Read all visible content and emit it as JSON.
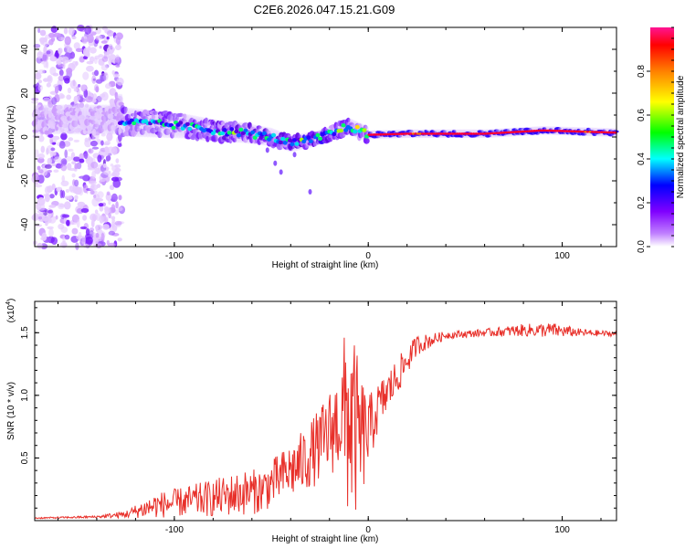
{
  "title": "C2E6.2026.047.15.21.G09",
  "colors": {
    "snr_line": "#e8302a",
    "axis": "#000000",
    "background": "#ffffff"
  },
  "chart_data": [
    {
      "type": "heatmap",
      "name": "spectrogram",
      "xlabel": "Height of straight line (km)",
      "ylabel": "Frequency (Hz)",
      "xlim": [
        -172,
        128
      ],
      "ylim": [
        -50,
        50
      ],
      "xticks": [
        -100,
        0,
        100
      ],
      "yticks": [
        -40,
        -20,
        0,
        20,
        40
      ],
      "colorbar": {
        "label": "Normalized spectral amplitude",
        "range": [
          0,
          1
        ],
        "ticks": [
          "0.0",
          "0.2",
          "0.4",
          "0.6",
          "0.8"
        ],
        "tick_values": [
          0.0,
          0.2,
          0.4,
          0.6,
          0.8
        ],
        "colormap": [
          "#ffffff",
          "#8000ff",
          "#0000ff",
          "#00ffff",
          "#00ff00",
          "#ffff00",
          "#ff8000",
          "#ff0000",
          "#ff1493"
        ]
      },
      "description_points": {
        "noise_region_x": [
          -172,
          -127
        ],
        "signal_track": [
          {
            "x": -130,
            "f": 7
          },
          {
            "x": -110,
            "f": 6
          },
          {
            "x": -95,
            "f": 5
          },
          {
            "x": -80,
            "f": 3
          },
          {
            "x": -65,
            "f": 2
          },
          {
            "x": -50,
            "f": 0
          },
          {
            "x": -40,
            "f": -3
          },
          {
            "x": -28,
            "f": -1
          },
          {
            "x": -15,
            "f": 3
          },
          {
            "x": -10,
            "f": 5
          },
          {
            "x": 0,
            "f": 1
          },
          {
            "x": 20,
            "f": 1.5
          },
          {
            "x": 60,
            "f": 1.5
          },
          {
            "x": 90,
            "f": 3
          },
          {
            "x": 128,
            "f": 2
          }
        ]
      }
    },
    {
      "type": "line",
      "name": "snr",
      "xlabel": "Height of straight line (km)",
      "ylabel": "SNR (10 * v/v)",
      "exponent_label": "(x10",
      "exponent_power": "4",
      "exponent_close": ")",
      "xlim": [
        -172,
        128
      ],
      "ylim": [
        0,
        1.75
      ],
      "xticks": [
        -100,
        0,
        100
      ],
      "yticks": [
        0.5,
        1.0,
        1.5
      ],
      "ytick_labels": [
        "0.5",
        "1.0",
        "1.5"
      ],
      "envelope": {
        "x": [
          -172,
          -140,
          -125,
          -110,
          -95,
          -80,
          -65,
          -55,
          -45,
          -35,
          -25,
          -15,
          -10,
          -5,
          0,
          5,
          15,
          25,
          40,
          60,
          80,
          95,
          110,
          128
        ],
        "mean": [
          0.02,
          0.03,
          0.05,
          0.12,
          0.15,
          0.18,
          0.22,
          0.24,
          0.35,
          0.45,
          0.6,
          0.8,
          0.85,
          0.65,
          0.7,
          0.9,
          1.15,
          1.4,
          1.48,
          1.5,
          1.52,
          1.52,
          1.5,
          1.49
        ],
        "amp": [
          0.005,
          0.01,
          0.03,
          0.1,
          0.12,
          0.15,
          0.18,
          0.18,
          0.2,
          0.25,
          0.3,
          0.4,
          0.9,
          0.6,
          0.3,
          0.2,
          0.15,
          0.08,
          0.03,
          0.03,
          0.05,
          0.06,
          0.03,
          0.02
        ]
      }
    }
  ]
}
